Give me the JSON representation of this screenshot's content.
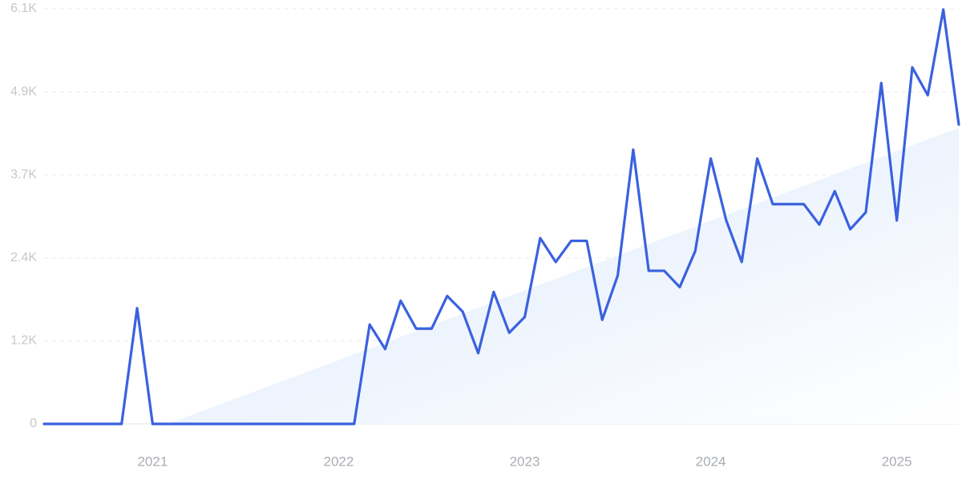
{
  "chart_data": {
    "type": "line",
    "categories": [
      null,
      null,
      null,
      null,
      null,
      null,
      null,
      "2021",
      null,
      null,
      null,
      null,
      null,
      null,
      null,
      null,
      null,
      null,
      null,
      "2022",
      null,
      null,
      null,
      null,
      null,
      null,
      null,
      null,
      null,
      null,
      null,
      "2023",
      null,
      null,
      null,
      null,
      null,
      null,
      null,
      null,
      null,
      null,
      null,
      "2024",
      null,
      null,
      null,
      null,
      null,
      null,
      null,
      null,
      null,
      null,
      null,
      "2025",
      null,
      null,
      null,
      null
    ],
    "series": [
      {
        "color": "#3a61de",
        "values": [
          0,
          0,
          0,
          0,
          0,
          0,
          1700,
          0,
          0,
          0,
          0,
          0,
          0,
          0,
          0,
          0,
          0,
          0,
          0,
          0,
          0,
          1460,
          1100,
          1810,
          1400,
          1400,
          1880,
          1650,
          1040,
          1940,
          1340,
          1570,
          2730,
          2380,
          2690,
          2690,
          1530,
          2180,
          4030,
          2250,
          2250,
          2010,
          2540,
          3900,
          2990,
          2380,
          3900,
          3230,
          3230,
          3230,
          2930,
          3420,
          2860,
          3110,
          5010,
          2990,
          5240,
          4830,
          6090,
          4400
        ]
      }
    ],
    "trend": {
      "color": "#dce9fb",
      "values": [
        null,
        null,
        null,
        null,
        null,
        null,
        null,
        null,
        0,
        85,
        171,
        256,
        341,
        427,
        512,
        597,
        682,
        768,
        853,
        938,
        1024,
        1109,
        1194,
        1280,
        1365,
        1450,
        1535,
        1621,
        1706,
        1791,
        1877,
        1962,
        2047,
        2133,
        2218,
        2303,
        2388,
        2474,
        2559,
        2644,
        2730,
        2815,
        2900,
        2986,
        3071,
        3156,
        3241,
        3327,
        3412,
        3497,
        3583,
        3668,
        3753,
        3839,
        3924,
        4009,
        4094,
        4180,
        4265,
        4350
      ]
    },
    "ylim": [
      0,
      6100
    ],
    "yticks": [
      0,
      {
        "value": 1220,
        "label": "1.2K"
      },
      {
        "value": 2440,
        "label": "2.4K"
      },
      {
        "value": 3660,
        "label": "3.7K"
      },
      {
        "value": 4880,
        "label": "4.9K"
      },
      {
        "value": 6100,
        "label": "6.1K"
      }
    ],
    "grid": true
  }
}
